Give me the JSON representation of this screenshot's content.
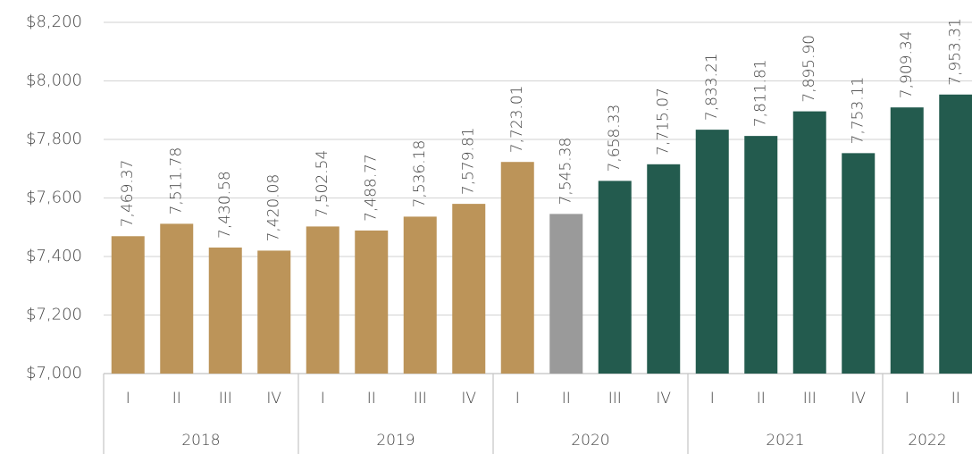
{
  "chart_data": {
    "type": "bar",
    "groups": [
      {
        "name": "2018",
        "categories": [
          "I",
          "II",
          "III",
          "IV"
        ]
      },
      {
        "name": "2019",
        "categories": [
          "I",
          "II",
          "III",
          "IV"
        ]
      },
      {
        "name": "2020",
        "categories": [
          "I",
          "II",
          "III",
          "IV"
        ]
      },
      {
        "name": "2021",
        "categories": [
          "I",
          "II",
          "III",
          "IV"
        ]
      },
      {
        "name": "2022",
        "categories": [
          "I",
          "II"
        ]
      }
    ],
    "values": [
      7469.37,
      7511.78,
      7430.58,
      7420.08,
      7502.54,
      7488.77,
      7536.18,
      7579.81,
      7723.01,
      7545.38,
      7658.33,
      7715.07,
      7833.21,
      7811.81,
      7895.9,
      7753.11,
      7909.34,
      7953.31
    ],
    "value_labels": [
      "7,469.37",
      "7,511.78",
      "7,430.58",
      "7,420.08",
      "7,502.54",
      "7,488.77",
      "7,536.18",
      "7,579.81",
      "7,723.01",
      "7,545.38",
      "7,658.33",
      "7,715.07",
      "7,833.21",
      "7,811.81",
      "7,895.90",
      "7,753.11",
      "7,909.34",
      "7,953.31"
    ],
    "colors": [
      "#bc9459",
      "#bc9459",
      "#bc9459",
      "#bc9459",
      "#bc9459",
      "#bc9459",
      "#bc9459",
      "#bc9459",
      "#bc9459",
      "#9a9a9a",
      "#235b4e",
      "#235b4e",
      "#235b4e",
      "#235b4e",
      "#235b4e",
      "#235b4e",
      "#235b4e",
      "#235b4e"
    ],
    "ylim": [
      7000,
      8200
    ],
    "yticks": [
      {
        "value": 7000,
        "label": "$7,000"
      },
      {
        "value": 7200,
        "label": "$7,200"
      },
      {
        "value": 7400,
        "label": "$7,400"
      },
      {
        "value": 7600,
        "label": "$7,600"
      },
      {
        "value": 7800,
        "label": "$7,800"
      },
      {
        "value": 8000,
        "label": "$8,000"
      },
      {
        "value": 8200,
        "label": "$8,200"
      }
    ],
    "grid": true
  }
}
